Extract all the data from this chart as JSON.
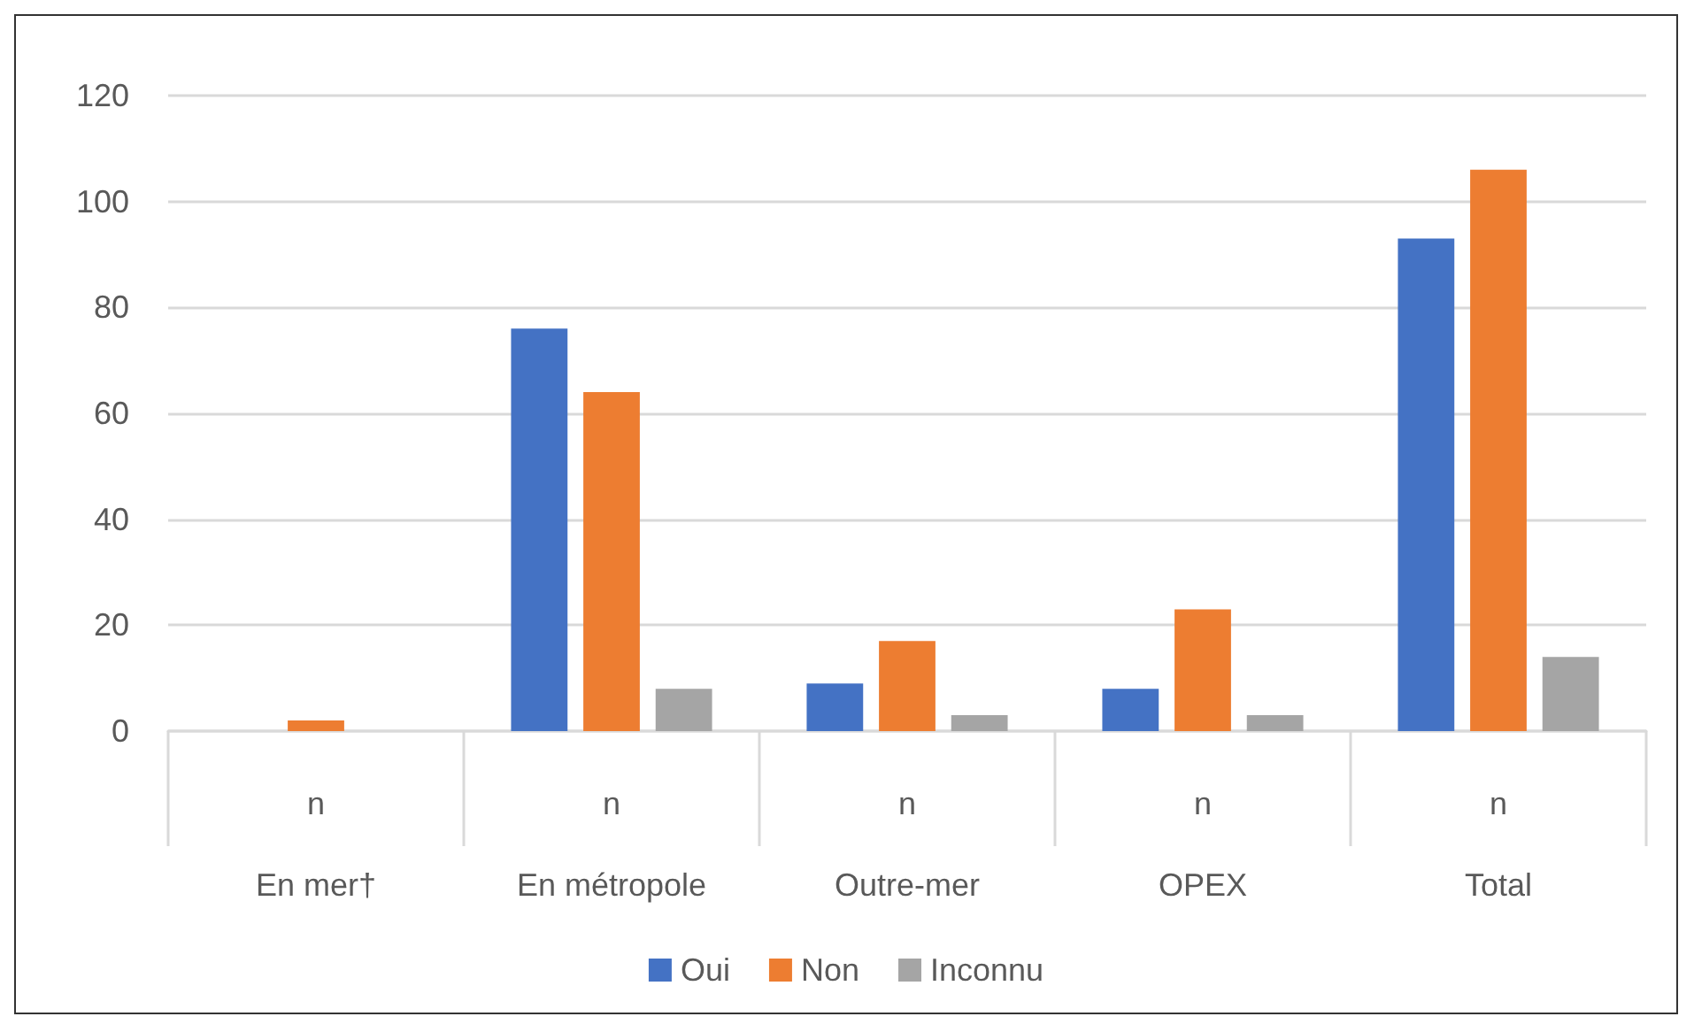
{
  "chart_data": {
    "type": "bar",
    "categories": [
      "n\nEn mer†",
      "n\nEn métropole",
      "n\nOutre-mer",
      "n\nOPEX",
      "n\nTotal"
    ],
    "series": [
      {
        "name": "Oui",
        "color": "#4472c4",
        "values": [
          0,
          76,
          9,
          8,
          93
        ]
      },
      {
        "name": "Non",
        "color": "#ed7d31",
        "values": [
          2,
          64,
          17,
          23,
          106
        ]
      },
      {
        "name": "Inconnu",
        "color": "#a5a5a5",
        "values": [
          0,
          8,
          3,
          3,
          14
        ]
      }
    ],
    "ylim": [
      0,
      120
    ],
    "yticks": [
      0,
      20,
      40,
      60,
      80,
      100,
      120
    ],
    "grid": "y",
    "legend": "bottom"
  }
}
